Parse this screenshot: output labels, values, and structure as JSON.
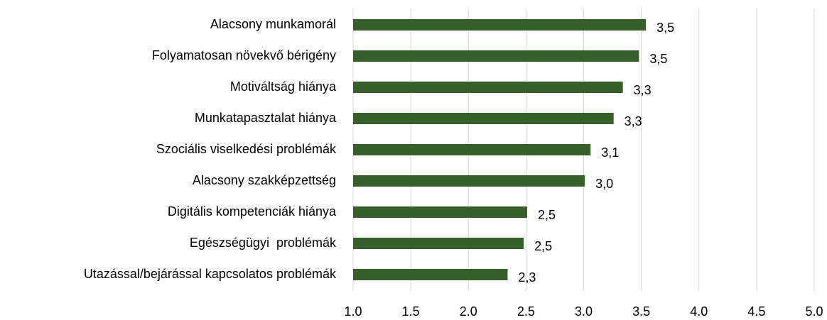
{
  "chart_data": {
    "type": "bar",
    "orientation": "horizontal",
    "categories": [
      "Alacsony munkamorál",
      "Folyamatosan növekvő bérigény",
      "Motiváltság hiánya",
      "Munkatapasztalat hiánya",
      "Szociális viselkedési problémák",
      "Alacsony szakképzettség",
      "Digitális kompetenciák hiánya",
      "Egészségügyi  problémák",
      "Utazással/bejárással kapcsolatos problémák"
    ],
    "values": [
      3.54,
      3.48,
      3.34,
      3.26,
      3.06,
      3.01,
      2.51,
      2.48,
      2.34
    ],
    "value_labels": [
      "3,5",
      "3,5",
      "3,3",
      "3,3",
      "3,1",
      "3,0",
      "2,5",
      "2,5",
      "2,3"
    ],
    "color": "#375f2a",
    "xlim": [
      1.0,
      5.0
    ],
    "xticks": [
      {
        "value": 1.0,
        "label": "1.0"
      },
      1.5,
      {
        "value": 2.0,
        "label": "2.0"
      },
      2.5,
      {
        "value": 3.0,
        "label": "3.0"
      },
      3.5,
      {
        "value": 4.0,
        "label": "4.0"
      },
      4.5,
      {
        "value": 5.0,
        "label": "5.0"
      }
    ],
    "grid": true
  }
}
